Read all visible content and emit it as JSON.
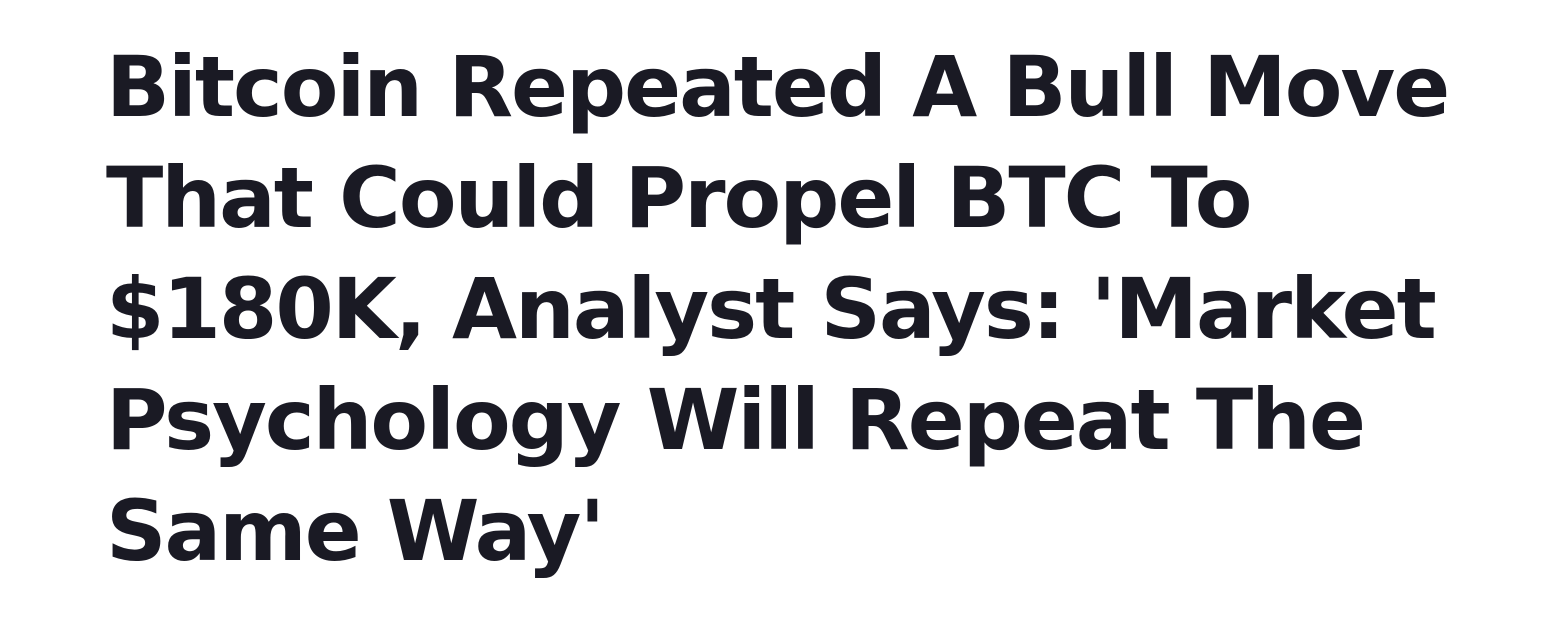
{
  "article": {
    "headline": "Bitcoin Repeated A Bull Move That Could Propel BTC To $180K, Analyst Says: 'Market Psychology Will Repeat The Same Way'"
  },
  "colors": {
    "text": "#1a1a24",
    "background": "#ffffff"
  }
}
